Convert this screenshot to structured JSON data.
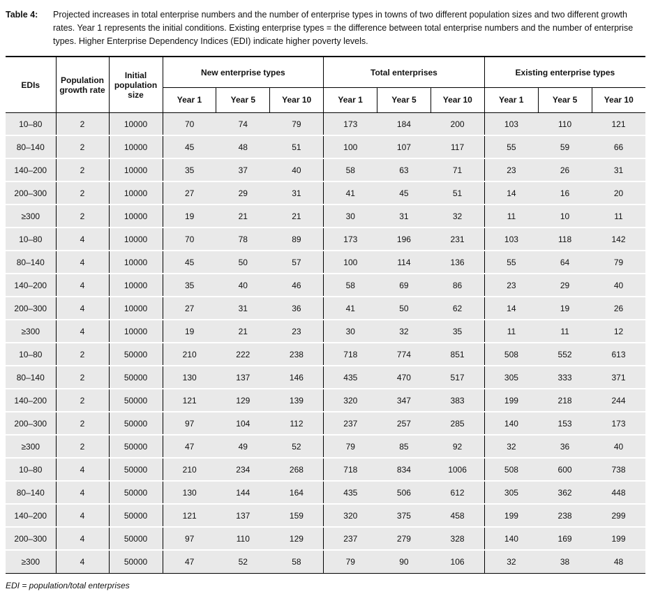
{
  "caption": {
    "label": "Table 4:",
    "text": "Projected increases in total enterprise numbers and the number of enterprise types in towns of two different population sizes and two different growth rates. Year 1 represents the initial conditions. Existing enterprise types = the difference between total enterprise numbers and the number of enterprise types. Higher Enterprise Dependency Indices (EDI) indicate higher poverty levels."
  },
  "table": {
    "headers": [
      "EDIs",
      "Population growth rate",
      "Initial population size"
    ],
    "groups": [
      {
        "label": "New enterprise types",
        "cols": [
          "Year 1",
          "Year 5",
          "Year 10"
        ]
      },
      {
        "label": "Total enterprises",
        "cols": [
          "Year 1",
          "Year 5",
          "Year 10"
        ]
      },
      {
        "label": "Existing enterprise types",
        "cols": [
          "Year 1",
          "Year 5",
          "Year 10"
        ]
      }
    ],
    "rows": [
      [
        "10–80",
        "2",
        "10000",
        "70",
        "74",
        "79",
        "173",
        "184",
        "200",
        "103",
        "110",
        "121"
      ],
      [
        "80–140",
        "2",
        "10000",
        "45",
        "48",
        "51",
        "100",
        "107",
        "117",
        "55",
        "59",
        "66"
      ],
      [
        "140–200",
        "2",
        "10000",
        "35",
        "37",
        "40",
        "58",
        "63",
        "71",
        "23",
        "26",
        "31"
      ],
      [
        "200–300",
        "2",
        "10000",
        "27",
        "29",
        "31",
        "41",
        "45",
        "51",
        "14",
        "16",
        "20"
      ],
      [
        "≥300",
        "2",
        "10000",
        "19",
        "21",
        "21",
        "30",
        "31",
        "32",
        "11",
        "10",
        "11"
      ],
      [
        "10–80",
        "4",
        "10000",
        "70",
        "78",
        "89",
        "173",
        "196",
        "231",
        "103",
        "118",
        "142"
      ],
      [
        "80–140",
        "4",
        "10000",
        "45",
        "50",
        "57",
        "100",
        "114",
        "136",
        "55",
        "64",
        "79"
      ],
      [
        "140–200",
        "4",
        "10000",
        "35",
        "40",
        "46",
        "58",
        "69",
        "86",
        "23",
        "29",
        "40"
      ],
      [
        "200–300",
        "4",
        "10000",
        "27",
        "31",
        "36",
        "41",
        "50",
        "62",
        "14",
        "19",
        "26"
      ],
      [
        "≥300",
        "4",
        "10000",
        "19",
        "21",
        "23",
        "30",
        "32",
        "35",
        "11",
        "11",
        "12"
      ],
      [
        "10–80",
        "2",
        "50000",
        "210",
        "222",
        "238",
        "718",
        "774",
        "851",
        "508",
        "552",
        "613"
      ],
      [
        "80–140",
        "2",
        "50000",
        "130",
        "137",
        "146",
        "435",
        "470",
        "517",
        "305",
        "333",
        "371"
      ],
      [
        "140–200",
        "2",
        "50000",
        "121",
        "129",
        "139",
        "320",
        "347",
        "383",
        "199",
        "218",
        "244"
      ],
      [
        "200–300",
        "2",
        "50000",
        "97",
        "104",
        "112",
        "237",
        "257",
        "285",
        "140",
        "153",
        "173"
      ],
      [
        "≥300",
        "2",
        "50000",
        "47",
        "49",
        "52",
        "79",
        "85",
        "92",
        "32",
        "36",
        "40"
      ],
      [
        "10–80",
        "4",
        "50000",
        "210",
        "234",
        "268",
        "718",
        "834",
        "1006",
        "508",
        "600",
        "738"
      ],
      [
        "80–140",
        "4",
        "50000",
        "130",
        "144",
        "164",
        "435",
        "506",
        "612",
        "305",
        "362",
        "448"
      ],
      [
        "140–200",
        "4",
        "50000",
        "121",
        "137",
        "159",
        "320",
        "375",
        "458",
        "199",
        "238",
        "299"
      ],
      [
        "200–300",
        "4",
        "50000",
        "97",
        "110",
        "129",
        "237",
        "279",
        "328",
        "140",
        "169",
        "199"
      ],
      [
        "≥300",
        "4",
        "50000",
        "47",
        "52",
        "58",
        "79",
        "90",
        "106",
        "32",
        "38",
        "48"
      ]
    ]
  },
  "footnote": "EDI = population/total enterprises"
}
